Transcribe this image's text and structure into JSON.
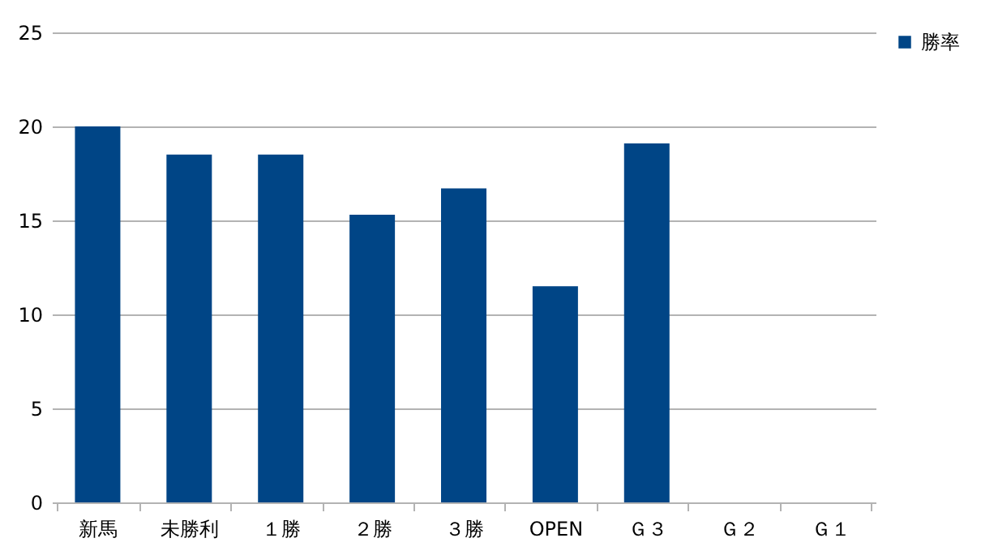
{
  "chart_data": {
    "type": "bar",
    "categories": [
      "新馬",
      "未勝利",
      "１勝",
      "２勝",
      "３勝",
      "OPEN",
      "Ｇ３",
      "Ｇ２",
      "Ｇ１"
    ],
    "series": [
      {
        "name": "勝率",
        "color": "#004586",
        "values": [
          20.0,
          18.5,
          18.5,
          15.3,
          16.7,
          11.5,
          19.1,
          null,
          null
        ]
      }
    ],
    "ylim": [
      0,
      25
    ],
    "yticks": [
      0,
      5,
      10,
      15,
      20,
      25
    ],
    "grid": "y",
    "legend": "right"
  }
}
